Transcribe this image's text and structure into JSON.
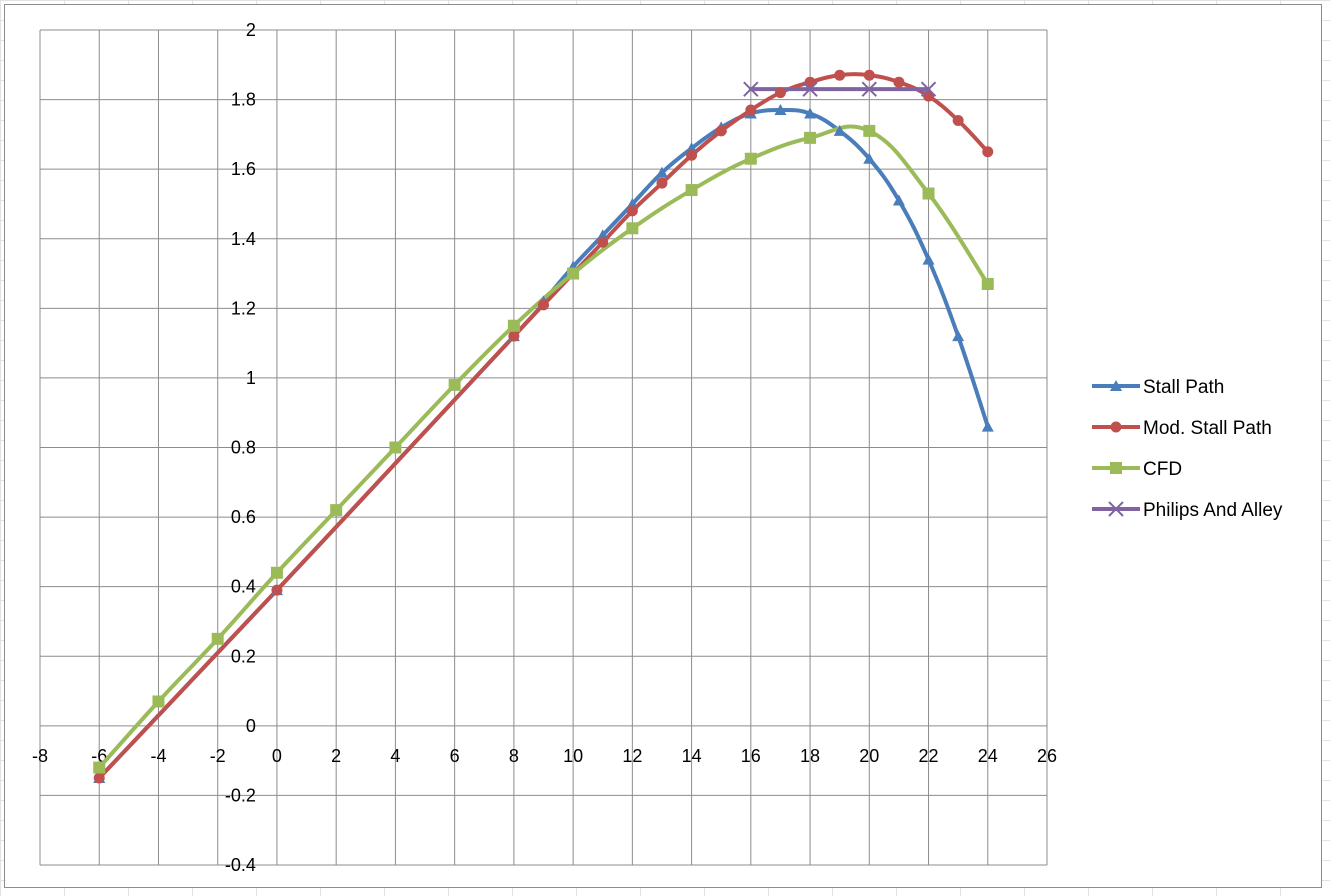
{
  "chart_data": {
    "type": "scatter",
    "title": "",
    "xlabel": "",
    "ylabel": "",
    "xlim": [
      -8,
      26
    ],
    "ylim": [
      -0.4,
      2
    ],
    "x_ticks": [
      "-8",
      "-6",
      "-4",
      "-2",
      "0",
      "2",
      "4",
      "6",
      "8",
      "10",
      "12",
      "14",
      "16",
      "18",
      "20",
      "22",
      "24",
      "26"
    ],
    "y_ticks": [
      "2",
      "1.8",
      "1.6",
      "1.4",
      "1.2",
      "1",
      "0.8",
      "0.6",
      "0.4",
      "0.2",
      "0",
      "-0.2",
      "-0.4"
    ],
    "grid": true,
    "smooth_lines": true,
    "legend_position": "right",
    "series": [
      {
        "name": "Stall Path",
        "color": "#4a7ebb",
        "marker": "triangle",
        "x": [
          -6,
          0,
          8,
          9,
          10,
          11,
          12,
          13,
          14,
          15,
          16,
          17,
          18,
          19,
          20,
          21,
          22,
          23,
          24
        ],
        "y": [
          -0.15,
          0.39,
          1.12,
          1.22,
          1.32,
          1.41,
          1.5,
          1.59,
          1.66,
          1.72,
          1.76,
          1.77,
          1.76,
          1.71,
          1.63,
          1.51,
          1.34,
          1.12,
          0.86
        ]
      },
      {
        "name": "Mod. Stall Path",
        "color": "#c0504d",
        "marker": "circle",
        "x": [
          -6,
          0,
          8,
          9,
          10,
          11,
          12,
          13,
          14,
          15,
          16,
          17,
          18,
          19,
          20,
          21,
          22,
          23,
          24
        ],
        "y": [
          -0.15,
          0.39,
          1.12,
          1.21,
          1.3,
          1.39,
          1.48,
          1.56,
          1.64,
          1.71,
          1.77,
          1.82,
          1.85,
          1.87,
          1.87,
          1.85,
          1.81,
          1.74,
          1.65
        ]
      },
      {
        "name": "CFD",
        "color": "#9bbb59",
        "marker": "square",
        "x": [
          -6,
          -4,
          -2,
          0,
          2,
          4,
          6,
          8,
          10,
          12,
          14,
          16,
          18,
          20,
          22,
          24
        ],
        "y": [
          -0.12,
          0.07,
          0.25,
          0.44,
          0.62,
          0.8,
          0.98,
          1.15,
          1.3,
          1.43,
          1.54,
          1.63,
          1.69,
          1.71,
          1.53,
          1.27
        ]
      },
      {
        "name": "Philips And Alley",
        "color": "#8064a2",
        "marker": "x",
        "x": [
          16,
          18,
          20,
          22
        ],
        "y": [
          1.83,
          1.83,
          1.83,
          1.83
        ]
      }
    ]
  }
}
